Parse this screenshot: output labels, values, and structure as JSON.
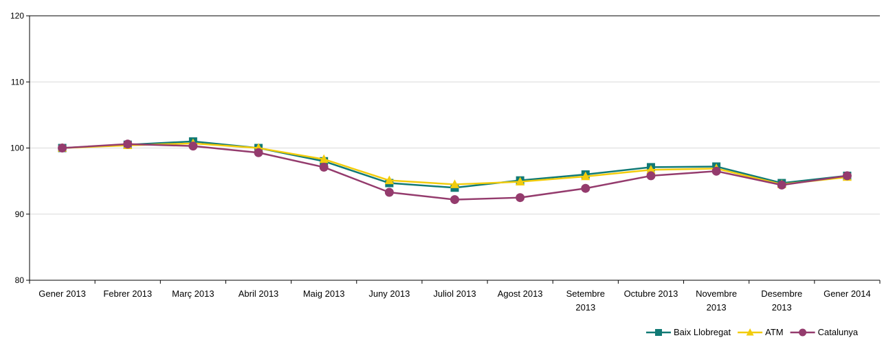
{
  "chart_data": {
    "type": "line",
    "title": "",
    "xlabel": "",
    "ylabel": "",
    "ylim": [
      80,
      120
    ],
    "yticks": [
      "80",
      "90",
      "100",
      "110",
      "120"
    ],
    "grid": "horizontal",
    "legend_position": "bottom-right",
    "categories": [
      [
        "Gener 2013"
      ],
      [
        "Febrer 2013"
      ],
      [
        "Març 2013"
      ],
      [
        "Abril 2013"
      ],
      [
        "Maig 2013"
      ],
      [
        "Juny 2013"
      ],
      [
        "Juliol 2013"
      ],
      [
        "Agost 2013"
      ],
      [
        "Setembre",
        "2013"
      ],
      [
        "Octubre 2013"
      ],
      [
        "Novembre",
        "2013"
      ],
      [
        "Desembre",
        "2013"
      ],
      [
        "Gener 2014"
      ]
    ],
    "series": [
      {
        "name": "Baix Llobregat",
        "color": "#117a75",
        "marker": "square",
        "values": [
          100.0,
          100.5,
          101.0,
          100.0,
          98.0,
          94.7,
          94.0,
          95.1,
          96.0,
          97.1,
          97.2,
          94.7,
          95.8
        ]
      },
      {
        "name": "ATM",
        "color": "#f2cc0c",
        "marker": "triangle",
        "values": [
          100.0,
          100.4,
          100.7,
          100.0,
          98.3,
          95.1,
          94.5,
          94.9,
          95.7,
          96.7,
          96.9,
          94.5,
          95.6
        ]
      },
      {
        "name": "Catalunya",
        "color": "#943b6d",
        "marker": "circle",
        "values": [
          100.0,
          100.6,
          100.3,
          99.3,
          97.1,
          93.3,
          92.2,
          92.5,
          93.9,
          95.8,
          96.5,
          94.4,
          95.8
        ]
      }
    ]
  }
}
